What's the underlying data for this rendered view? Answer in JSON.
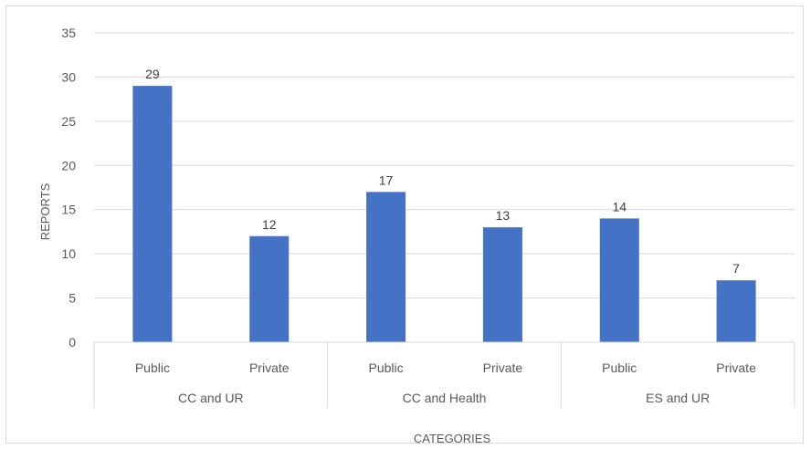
{
  "chart_data": {
    "type": "bar",
    "groups": [
      {
        "label": "CC and UR",
        "categories": [
          "Public",
          "Private"
        ],
        "values": [
          29,
          12
        ]
      },
      {
        "label": "CC and Health",
        "categories": [
          "Public",
          "Private"
        ],
        "values": [
          17,
          13
        ]
      },
      {
        "label": "ES and UR",
        "categories": [
          "Public",
          "Private"
        ],
        "values": [
          14,
          7
        ]
      }
    ],
    "xlabel": "CATEGORIES",
    "ylabel": "REPORTS",
    "ylim": [
      0,
      35
    ],
    "yticks": [
      0,
      5,
      10,
      15,
      20,
      25,
      30,
      35
    ],
    "grid": true,
    "bar_color": "#4472C4",
    "data_labels": true
  }
}
